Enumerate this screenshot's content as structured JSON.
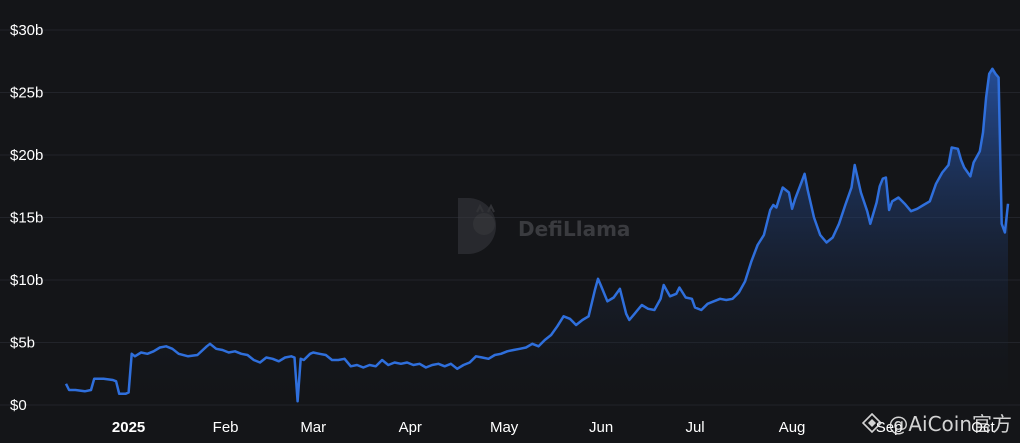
{
  "chart_data": {
    "type": "area",
    "title": "",
    "xlabel": "",
    "ylabel": "",
    "ylim": [
      0,
      30
    ],
    "y_ticks": [
      "$0",
      "$5b",
      "$10b",
      "$15b",
      "$20b",
      "$25b",
      "$30b"
    ],
    "y_tick_values": [
      0,
      5,
      10,
      15,
      20,
      25,
      30
    ],
    "x_ticks": [
      {
        "label": "2025",
        "date": "2025-01-01",
        "bold": true
      },
      {
        "label": "Feb",
        "date": "2025-02-01",
        "bold": false
      },
      {
        "label": "Mar",
        "date": "2025-03-01",
        "bold": false
      },
      {
        "label": "Apr",
        "date": "2025-04-01",
        "bold": false
      },
      {
        "label": "May",
        "date": "2025-05-01",
        "bold": false
      },
      {
        "label": "Jun",
        "date": "2025-06-01",
        "bold": false
      },
      {
        "label": "Jul",
        "date": "2025-07-01",
        "bold": false
      },
      {
        "label": "Aug",
        "date": "2025-08-01",
        "bold": false
      },
      {
        "label": "Sep",
        "date": "2025-09-01",
        "bold": false
      },
      {
        "label": "Oct",
        "date": "2025-10-01",
        "bold": false
      }
    ],
    "x_range": [
      "2024-12-12",
      "2025-10-09"
    ],
    "series": [
      {
        "color": "#2f6fdc",
        "points": [
          [
            "2024-12-12",
            1.7
          ],
          [
            "2024-12-13",
            1.2
          ],
          [
            "2024-12-15",
            1.2
          ],
          [
            "2024-12-18",
            1.1
          ],
          [
            "2024-12-20",
            1.2
          ],
          [
            "2024-12-21",
            2.1
          ],
          [
            "2024-12-24",
            2.1
          ],
          [
            "2024-12-27",
            2.0
          ],
          [
            "2024-12-28",
            1.9
          ],
          [
            "2024-12-29",
            0.9
          ],
          [
            "2024-12-31",
            0.9
          ],
          [
            "2025-01-01",
            1.0
          ],
          [
            "2025-01-02",
            4.1
          ],
          [
            "2025-01-03",
            3.9
          ],
          [
            "2025-01-05",
            4.2
          ],
          [
            "2025-01-07",
            4.1
          ],
          [
            "2025-01-09",
            4.3
          ],
          [
            "2025-01-11",
            4.6
          ],
          [
            "2025-01-13",
            4.7
          ],
          [
            "2025-01-15",
            4.5
          ],
          [
            "2025-01-17",
            4.1
          ],
          [
            "2025-01-20",
            3.9
          ],
          [
            "2025-01-23",
            4.0
          ],
          [
            "2025-01-26",
            4.7
          ],
          [
            "2025-01-27",
            4.9
          ],
          [
            "2025-01-29",
            4.5
          ],
          [
            "2025-01-31",
            4.4
          ],
          [
            "2025-02-02",
            4.2
          ],
          [
            "2025-02-04",
            4.3
          ],
          [
            "2025-02-06",
            4.1
          ],
          [
            "2025-02-08",
            4.0
          ],
          [
            "2025-02-10",
            3.6
          ],
          [
            "2025-02-12",
            3.4
          ],
          [
            "2025-02-14",
            3.8
          ],
          [
            "2025-02-16",
            3.7
          ],
          [
            "2025-02-18",
            3.5
          ],
          [
            "2025-02-20",
            3.8
          ],
          [
            "2025-02-22",
            3.9
          ],
          [
            "2025-02-23",
            3.8
          ],
          [
            "2025-02-24",
            0.3
          ],
          [
            "2025-02-25",
            3.7
          ],
          [
            "2025-02-26",
            3.6
          ],
          [
            "2025-02-28",
            4.1
          ],
          [
            "2025-03-01",
            4.2
          ],
          [
            "2025-03-03",
            4.1
          ],
          [
            "2025-03-05",
            4.0
          ],
          [
            "2025-03-07",
            3.6
          ],
          [
            "2025-03-09",
            3.6
          ],
          [
            "2025-03-11",
            3.7
          ],
          [
            "2025-03-13",
            3.1
          ],
          [
            "2025-03-15",
            3.2
          ],
          [
            "2025-03-17",
            3.0
          ],
          [
            "2025-03-19",
            3.2
          ],
          [
            "2025-03-21",
            3.1
          ],
          [
            "2025-03-23",
            3.6
          ],
          [
            "2025-03-25",
            3.2
          ],
          [
            "2025-03-27",
            3.4
          ],
          [
            "2025-03-29",
            3.3
          ],
          [
            "2025-03-31",
            3.4
          ],
          [
            "2025-04-02",
            3.2
          ],
          [
            "2025-04-04",
            3.3
          ],
          [
            "2025-04-06",
            3.0
          ],
          [
            "2025-04-08",
            3.2
          ],
          [
            "2025-04-10",
            3.3
          ],
          [
            "2025-04-12",
            3.1
          ],
          [
            "2025-04-14",
            3.3
          ],
          [
            "2025-04-16",
            2.9
          ],
          [
            "2025-04-18",
            3.2
          ],
          [
            "2025-04-20",
            3.4
          ],
          [
            "2025-04-22",
            3.9
          ],
          [
            "2025-04-24",
            3.8
          ],
          [
            "2025-04-26",
            3.7
          ],
          [
            "2025-04-28",
            4.0
          ],
          [
            "2025-04-30",
            4.1
          ],
          [
            "2025-05-02",
            4.3
          ],
          [
            "2025-05-04",
            4.4
          ],
          [
            "2025-05-06",
            4.5
          ],
          [
            "2025-05-08",
            4.6
          ],
          [
            "2025-05-10",
            4.9
          ],
          [
            "2025-05-12",
            4.7
          ],
          [
            "2025-05-14",
            5.2
          ],
          [
            "2025-05-16",
            5.6
          ],
          [
            "2025-05-18",
            6.3
          ],
          [
            "2025-05-20",
            7.1
          ],
          [
            "2025-05-22",
            6.9
          ],
          [
            "2025-05-24",
            6.4
          ],
          [
            "2025-05-26",
            6.8
          ],
          [
            "2025-05-28",
            7.1
          ],
          [
            "2025-05-30",
            9.2
          ],
          [
            "2025-05-31",
            10.1
          ],
          [
            "2025-06-01",
            9.5
          ],
          [
            "2025-06-03",
            8.3
          ],
          [
            "2025-06-05",
            8.6
          ],
          [
            "2025-06-07",
            9.3
          ],
          [
            "2025-06-09",
            7.3
          ],
          [
            "2025-06-10",
            6.8
          ],
          [
            "2025-06-12",
            7.4
          ],
          [
            "2025-06-14",
            8.0
          ],
          [
            "2025-06-16",
            7.7
          ],
          [
            "2025-06-18",
            7.6
          ],
          [
            "2025-06-20",
            8.5
          ],
          [
            "2025-06-21",
            9.6
          ],
          [
            "2025-06-23",
            8.7
          ],
          [
            "2025-06-25",
            8.9
          ],
          [
            "2025-06-26",
            9.4
          ],
          [
            "2025-06-28",
            8.6
          ],
          [
            "2025-06-30",
            8.5
          ],
          [
            "2025-07-01",
            7.8
          ],
          [
            "2025-07-03",
            7.6
          ],
          [
            "2025-07-05",
            8.1
          ],
          [
            "2025-07-07",
            8.3
          ],
          [
            "2025-07-09",
            8.5
          ],
          [
            "2025-07-11",
            8.4
          ],
          [
            "2025-07-13",
            8.5
          ],
          [
            "2025-07-15",
            9.0
          ],
          [
            "2025-07-17",
            9.9
          ],
          [
            "2025-07-19",
            11.5
          ],
          [
            "2025-07-21",
            12.8
          ],
          [
            "2025-07-23",
            13.6
          ],
          [
            "2025-07-25",
            15.6
          ],
          [
            "2025-07-26",
            16.0
          ],
          [
            "2025-07-27",
            15.8
          ],
          [
            "2025-07-28",
            16.6
          ],
          [
            "2025-07-29",
            17.4
          ],
          [
            "2025-07-31",
            17.0
          ],
          [
            "2025-08-01",
            15.7
          ],
          [
            "2025-08-02",
            16.5
          ],
          [
            "2025-08-04",
            17.8
          ],
          [
            "2025-08-05",
            18.5
          ],
          [
            "2025-08-06",
            17.2
          ],
          [
            "2025-08-08",
            15.0
          ],
          [
            "2025-08-10",
            13.6
          ],
          [
            "2025-08-12",
            13.0
          ],
          [
            "2025-08-14",
            13.4
          ],
          [
            "2025-08-16",
            14.5
          ],
          [
            "2025-08-18",
            16.0
          ],
          [
            "2025-08-20",
            17.4
          ],
          [
            "2025-08-21",
            19.2
          ],
          [
            "2025-08-23",
            17.0
          ],
          [
            "2025-08-25",
            15.5
          ],
          [
            "2025-08-26",
            14.5
          ],
          [
            "2025-08-28",
            16.2
          ],
          [
            "2025-08-29",
            17.5
          ],
          [
            "2025-08-30",
            18.1
          ],
          [
            "2025-08-31",
            18.2
          ],
          [
            "2025-09-01",
            15.6
          ],
          [
            "2025-09-02",
            16.3
          ],
          [
            "2025-09-04",
            16.6
          ],
          [
            "2025-09-06",
            16.1
          ],
          [
            "2025-09-08",
            15.5
          ],
          [
            "2025-09-10",
            15.7
          ],
          [
            "2025-09-12",
            16.0
          ],
          [
            "2025-09-14",
            16.3
          ],
          [
            "2025-09-16",
            17.7
          ],
          [
            "2025-09-18",
            18.6
          ],
          [
            "2025-09-20",
            19.2
          ],
          [
            "2025-09-21",
            20.6
          ],
          [
            "2025-09-23",
            20.5
          ],
          [
            "2025-09-24",
            19.6
          ],
          [
            "2025-09-25",
            19.0
          ],
          [
            "2025-09-27",
            18.3
          ],
          [
            "2025-09-28",
            19.4
          ],
          [
            "2025-09-30",
            20.3
          ],
          [
            "2025-10-01",
            21.8
          ],
          [
            "2025-10-02",
            24.6
          ],
          [
            "2025-10-03",
            26.5
          ],
          [
            "2025-10-04",
            26.9
          ],
          [
            "2025-10-05",
            26.5
          ],
          [
            "2025-10-06",
            26.2
          ],
          [
            "2025-10-07",
            14.5
          ],
          [
            "2025-10-08",
            13.8
          ],
          [
            "2025-10-09",
            16.1
          ]
        ]
      }
    ],
    "grid": true,
    "legend": "none"
  },
  "watermark": {
    "text": "DefiLlama",
    "icon": "llama-icon"
  },
  "corner_watermark": {
    "text": "@AiCoin官方",
    "icon": "diamond-logo-icon"
  }
}
